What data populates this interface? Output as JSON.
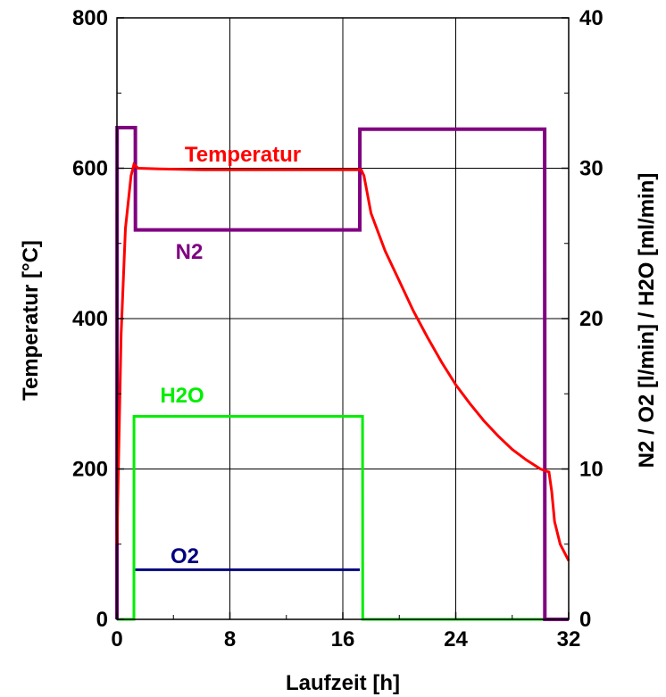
{
  "chart_data": {
    "type": "line",
    "xlabel": "Laufzeit [h]",
    "ylabel": "Temperatur [°C]",
    "y2label": "N2 / O2 [l/min] / H2O [ml/min]",
    "xlim": [
      0,
      32
    ],
    "ylim": [
      0,
      800
    ],
    "y2lim": [
      0,
      40
    ],
    "x_ticks": [
      "0",
      "8",
      "16",
      "24",
      "32"
    ],
    "y_ticks": [
      "0",
      "200",
      "400",
      "600",
      "800"
    ],
    "y2_ticks": [
      "0",
      "10",
      "20",
      "30",
      "40"
    ],
    "grid": true,
    "series": [
      {
        "name": "Temperatur",
        "axis": "left",
        "color": "#ff0000",
        "x": [
          0,
          0.1,
          0.3,
          0.6,
          1.0,
          1.2,
          1.5,
          3,
          6,
          10,
          14,
          17.3,
          17.5,
          18,
          19,
          20,
          21,
          22,
          23,
          24,
          25,
          26,
          27,
          28,
          29,
          30,
          30.6,
          30.8,
          31.0,
          31.4,
          32
        ],
        "y": [
          100,
          200,
          380,
          520,
          590,
          605,
          600,
          599,
          598,
          598,
          598,
          598,
          590,
          540,
          490,
          450,
          410,
          375,
          342,
          312,
          287,
          264,
          244,
          226,
          212,
          200,
          196,
          170,
          130,
          100,
          78
        ]
      },
      {
        "name": "N2",
        "axis": "right",
        "color": "#800080",
        "x": [
          0,
          0.01,
          1.3,
          1.31,
          17.2,
          17.21,
          30.3,
          30.31,
          32
        ],
        "y": [
          0,
          32.7,
          32.7,
          25.9,
          25.9,
          32.6,
          32.6,
          0,
          0
        ]
      },
      {
        "name": "H2O",
        "axis": "right",
        "color": "#00ee00",
        "x": [
          0,
          1.2,
          1.21,
          17.4,
          17.41,
          32
        ],
        "y": [
          0,
          0,
          13.5,
          13.5,
          0,
          0
        ]
      },
      {
        "name": "O2",
        "axis": "right",
        "color": "#000080",
        "x": [
          1.3,
          17.2
        ],
        "y": [
          3.3,
          3.3
        ]
      }
    ]
  }
}
